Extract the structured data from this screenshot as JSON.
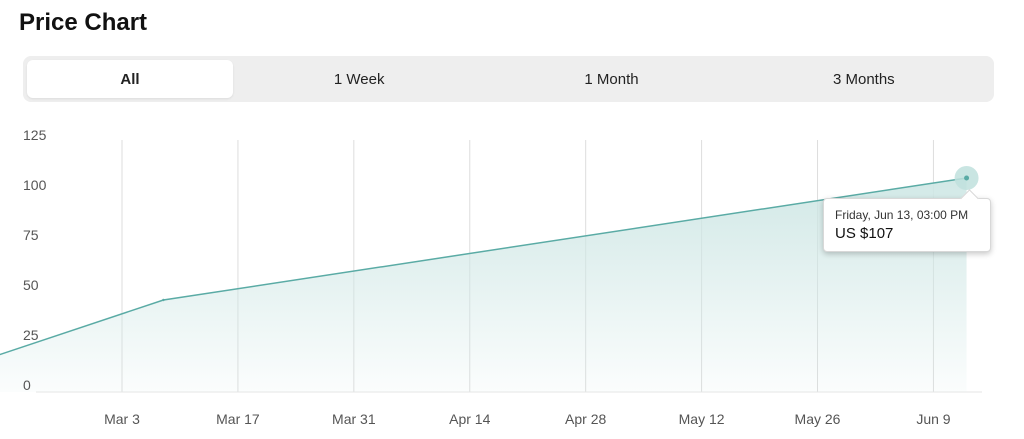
{
  "header": {
    "title": "Price Chart"
  },
  "tabs": [
    {
      "label": "All",
      "active": true
    },
    {
      "label": "1 Week",
      "active": false
    },
    {
      "label": "1 Month",
      "active": false
    },
    {
      "label": "3 Months",
      "active": false
    }
  ],
  "tooltip": {
    "date": "Friday, Jun 13, 03:00 PM",
    "price": "US $107"
  },
  "colors": {
    "line": "#5aaba5",
    "fill": "#cfe7e5",
    "marker": "#bfe0dd",
    "grid": "#dddddd"
  },
  "chart_data": {
    "type": "area",
    "x": [
      "2025-02-15",
      "2025-03-08",
      "2025-06-13"
    ],
    "y": [
      17,
      46,
      107
    ],
    "xticks": [
      "Mar 3",
      "Mar 17",
      "Mar 31",
      "Apr 14",
      "Apr 28",
      "May 12",
      "May 26",
      "Jun 9"
    ],
    "xtick_dates": [
      "2025-03-03",
      "2025-03-17",
      "2025-03-31",
      "2025-04-14",
      "2025-04-28",
      "2025-05-12",
      "2025-05-26",
      "2025-06-09"
    ],
    "yticks": [
      "0",
      "25",
      "50",
      "75",
      "100",
      "125"
    ],
    "ylim": [
      0,
      125
    ],
    "grid": true,
    "highlighted_point": {
      "x": "2025-06-13",
      "y": 107
    }
  }
}
